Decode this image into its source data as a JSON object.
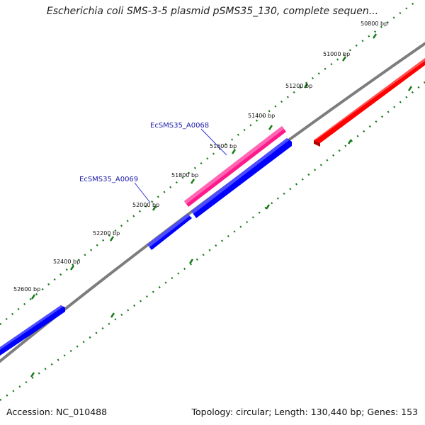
{
  "title": "Escherichia coli SMS-3-5 plasmid pSMS35_130, complete sequen...",
  "footer": {
    "accession": "Accession: NC_010488",
    "summary": "Topology: circular; Length: 130,440 bp; Genes: 153"
  },
  "ticks": [
    "50800 bp",
    "51000 bp",
    "51200 bp",
    "51400 bp",
    "51600 bp",
    "51800 bp",
    "52000 bp",
    "52200 bp",
    "52400 bp",
    "52600 bp"
  ],
  "genes": [
    {
      "name": "EcSMS35_A0068",
      "color": "#ff1a8c"
    },
    {
      "name": "EcSMS35_A0069",
      "color": "#1a1aff"
    }
  ],
  "colors": {
    "backbone": "#808080",
    "tick": "#1a7a1a",
    "forward_gene": "#ff1a8c",
    "reverse_gene": "#0000ff",
    "other_gene": "#ff0000",
    "label": "#1a1aaa"
  }
}
